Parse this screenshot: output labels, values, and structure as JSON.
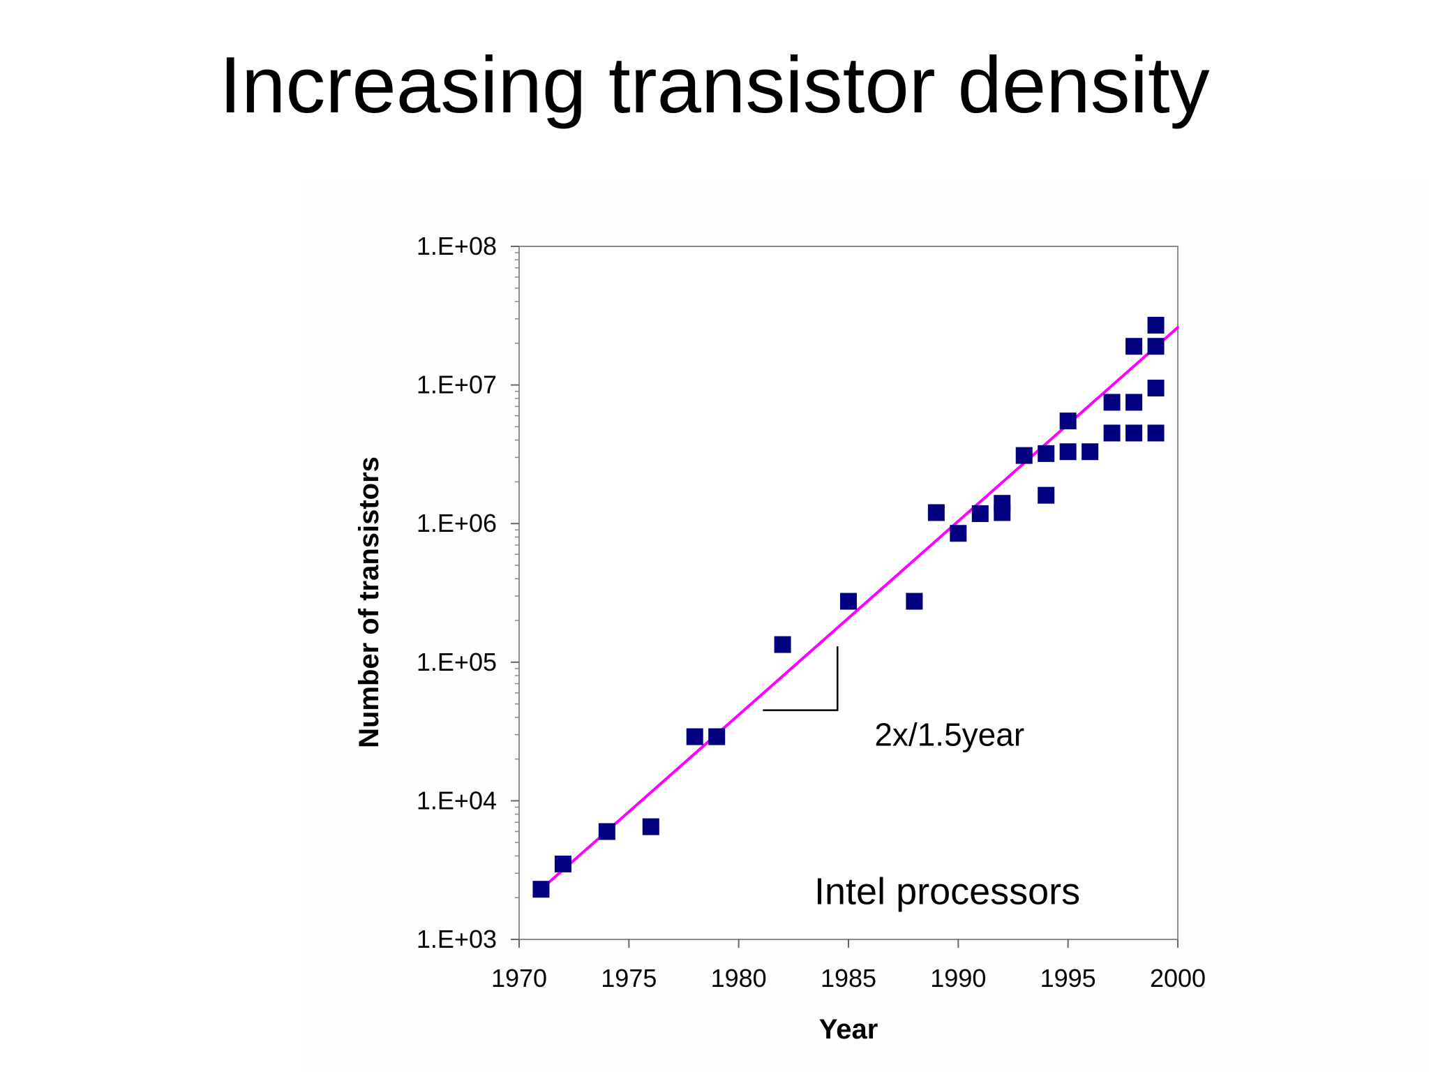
{
  "slide": {
    "title": "Increasing transistor density"
  },
  "chart_data": {
    "type": "scatter",
    "xlabel": "Year",
    "ylabel": "Number of transistors",
    "xlim": [
      1970,
      2000
    ],
    "ylim": [
      1000,
      100000000
    ],
    "y_scale": "log",
    "x_ticks": [
      1970,
      1975,
      1980,
      1985,
      1990,
      1995,
      2000
    ],
    "x_tick_labels": [
      "1970",
      "1975",
      "1980",
      "1985",
      "1990",
      "1995",
      "2000"
    ],
    "y_ticks": [
      1000,
      10000,
      100000,
      1000000,
      10000000,
      100000000
    ],
    "y_tick_labels": [
      "1.E+03",
      "1.E+04",
      "1.E+05",
      "1.E+06",
      "1.E+07",
      "1.E+08"
    ],
    "grid": false,
    "series": [
      {
        "color": "#000080",
        "marker": "square",
        "points": [
          [
            1971,
            2300
          ],
          [
            1972,
            3500
          ],
          [
            1974,
            6000
          ],
          [
            1976,
            6500
          ],
          [
            1978,
            29000
          ],
          [
            1979,
            29000
          ],
          [
            1982,
            134000
          ],
          [
            1985,
            275000
          ],
          [
            1988,
            275000
          ],
          [
            1989,
            1200000
          ],
          [
            1990,
            850000
          ],
          [
            1991,
            1180000
          ],
          [
            1992,
            1200000
          ],
          [
            1992,
            1400000
          ],
          [
            1993,
            3100000
          ],
          [
            1994,
            1600000
          ],
          [
            1994,
            3200000
          ],
          [
            1995,
            3300000
          ],
          [
            1995,
            5500000
          ],
          [
            1996,
            3300000
          ],
          [
            1997,
            4500000
          ],
          [
            1997,
            7500000
          ],
          [
            1998,
            4500000
          ],
          [
            1998,
            7500000
          ],
          [
            1998,
            19000000
          ],
          [
            1999,
            4500000
          ],
          [
            1999,
            9500000
          ],
          [
            1999,
            19000000
          ],
          [
            1999,
            27000000
          ]
        ]
      }
    ],
    "trend_line": {
      "color": "#ff00ff",
      "points": [
        [
          1971,
          2300
        ],
        [
          2000,
          26000000
        ]
      ]
    },
    "annotations": [
      {
        "text": "2x/1.5year",
        "x": 1989.6,
        "y": 25000
      },
      {
        "text": "Intel processors",
        "x": 1989.5,
        "y": 1800
      }
    ],
    "slope_marker": {
      "points": [
        [
          1981.1,
          45000
        ],
        [
          1984.5,
          45000
        ],
        [
          1984.5,
          130000
        ]
      ]
    }
  }
}
